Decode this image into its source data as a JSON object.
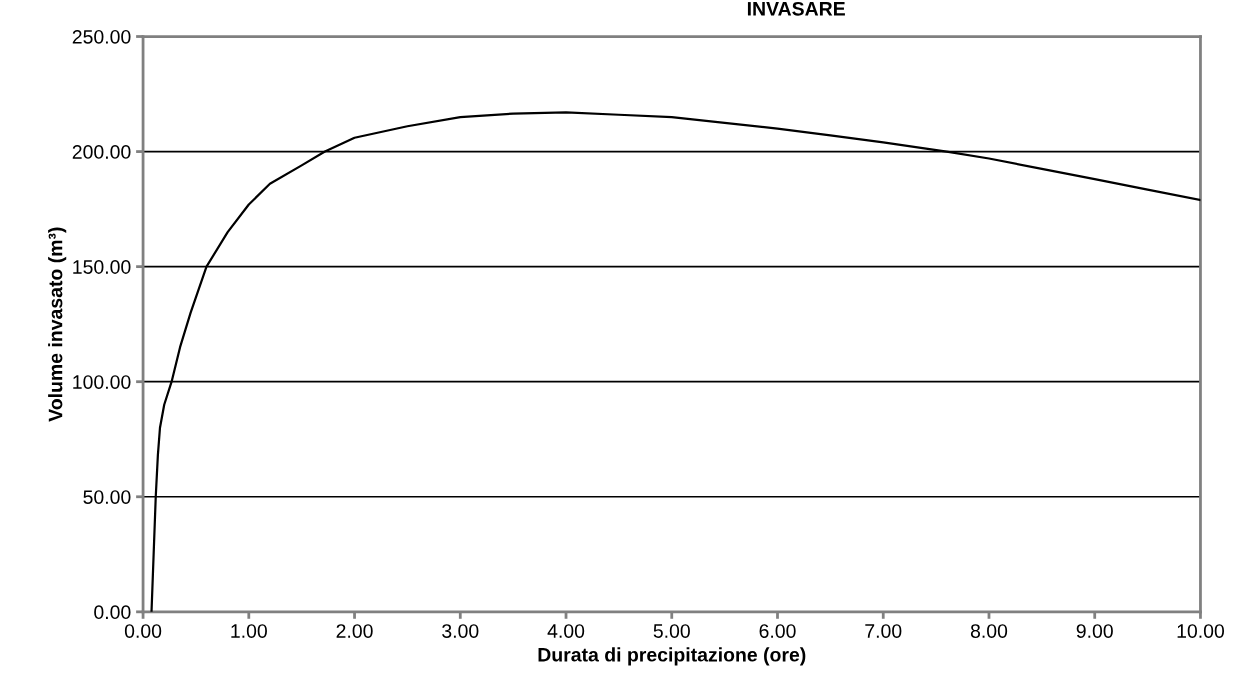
{
  "chart_data": {
    "type": "line",
    "title": "INVASARE",
    "xlabel": "Durata di precipitazione (ore)",
    "ylabel": "Volume invasato (m³)",
    "series": [
      {
        "color": "#000000",
        "x": [
          0.08,
          0.1,
          0.12,
          0.14,
          0.16,
          0.2,
          0.27,
          0.35,
          0.45,
          0.6,
          0.8,
          1.0,
          1.2,
          1.5,
          1.72,
          2.0,
          2.5,
          3.0,
          3.5,
          4.0,
          4.5,
          5.0,
          5.5,
          6.0,
          6.5,
          7.0,
          7.6,
          8.0,
          8.5,
          9.0,
          9.5,
          10.0
        ],
        "values": [
          0,
          25,
          50,
          68,
          80,
          90,
          100,
          115,
          130,
          150,
          165,
          177,
          186,
          194,
          200,
          206,
          211,
          215,
          216.5,
          217,
          216,
          215,
          212.5,
          210,
          207,
          204,
          200,
          197,
          192.5,
          188,
          183.5,
          179
        ]
      }
    ],
    "xlim": [
      0,
      10
    ],
    "xticks": [
      {
        "value": 0,
        "label": "0.00"
      },
      {
        "value": 1,
        "label": "1.00"
      },
      {
        "value": 2,
        "label": "2.00"
      },
      {
        "value": 3,
        "label": "3.00"
      },
      {
        "value": 4,
        "label": "4.00"
      },
      {
        "value": 5,
        "label": "5.00"
      },
      {
        "value": 6,
        "label": "6.00"
      },
      {
        "value": 7,
        "label": "7.00"
      },
      {
        "value": 8,
        "label": "8.00"
      },
      {
        "value": 9,
        "label": "9.00"
      },
      {
        "value": 10,
        "label": "10.00"
      }
    ],
    "ylim": [
      0,
      250
    ],
    "yticks": [
      {
        "value": 0,
        "label": "0.00"
      },
      {
        "value": 50,
        "label": "50.00"
      },
      {
        "value": 100,
        "label": "100.00"
      },
      {
        "value": 150,
        "label": "150.00"
      },
      {
        "value": 200,
        "label": "200.00"
      },
      {
        "value": 250,
        "label": "250.00"
      }
    ],
    "grid": "y",
    "marker": "none",
    "line_style": "solid",
    "legend": false
  }
}
